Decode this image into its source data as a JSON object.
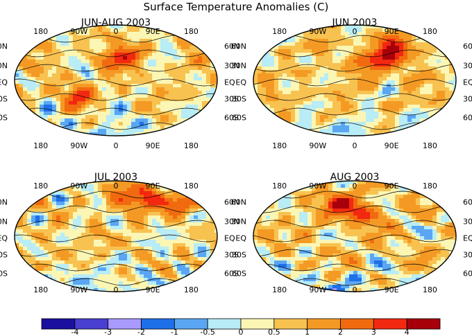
{
  "title": "Surface Temperature Anomalies (C)",
  "lon_labels": [
    "180",
    "90W",
    "0",
    "90E",
    "180"
  ],
  "lat_labels": [
    "60N",
    "30N",
    "EQ",
    "30S",
    "60S"
  ],
  "panels": [
    {
      "title": "JUN-AUG 2003",
      "seed": 3,
      "hot_region": "europe-west",
      "warmth": 0.55
    },
    {
      "title": "JUN 2003",
      "seed": 7,
      "hot_region": "asia",
      "warmth": 0.6
    },
    {
      "title": "JUL 2003",
      "seed": 11,
      "hot_region": "arctic-asia",
      "warmth": 0.5
    },
    {
      "title": "AUG 2003",
      "seed": 19,
      "hot_region": "europe",
      "warmth": 0.62
    }
  ],
  "colorbar": {
    "labels": [
      "-4",
      "-3",
      "-2",
      "-1",
      "-0.5",
      "0",
      "0.5",
      "1",
      "2",
      "3",
      "4"
    ],
    "colors": [
      "#1a0f9e",
      "#4a3fd0",
      "#a99aff",
      "#1f6fe8",
      "#5aa6f2",
      "#b8ecf6",
      "#fbf6b4",
      "#f8c250",
      "#f49a24",
      "#f16a10",
      "#f32810",
      "#a8000a"
    ]
  }
}
